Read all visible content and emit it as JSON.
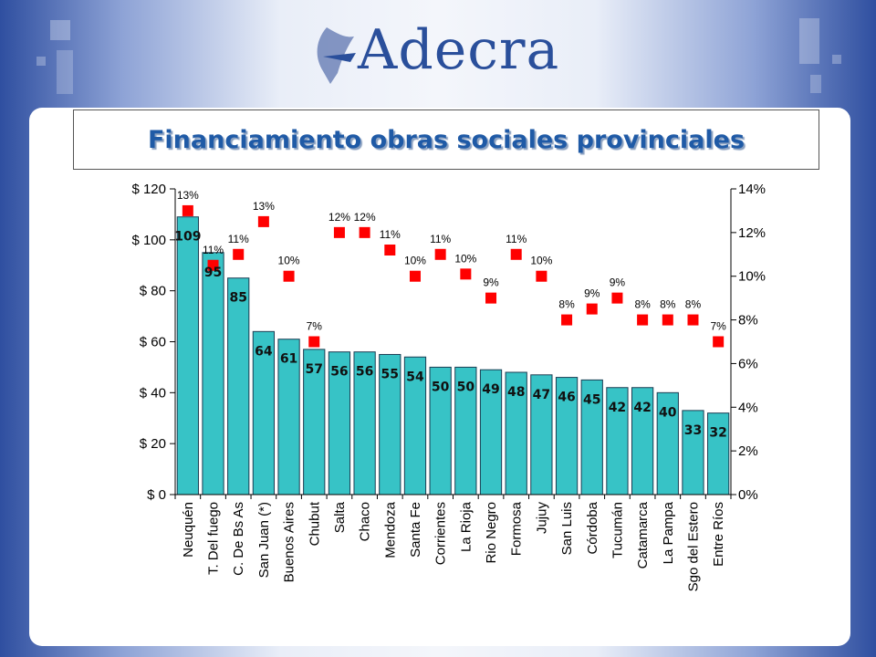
{
  "header": {
    "logo_text": "Adecra",
    "title": "Financiamiento obras sociales provinciales"
  },
  "colors": {
    "bar": "#37c3c6",
    "bar_stroke": "#1b3d52",
    "marker": "#ff0000",
    "title": "#1f5aa6"
  },
  "chart_data": {
    "type": "bar",
    "title": "Financiamiento obras sociales provinciales",
    "categories": [
      "Neuquén",
      "T. Del fuego",
      "C. De Bs As",
      "San Juan (*)",
      "Buenos Aires",
      "Chubut",
      "Salta",
      "Chaco",
      "Mendoza",
      "Santa Fe",
      "Corrientes",
      "La Rioja",
      "Rio Negro",
      "Formosa",
      "Jujuy",
      "San Luis",
      "Córdoba",
      "Tucumán",
      "Catamarca",
      "La Pampa",
      "Sgo del Estero",
      "Entre Ríos"
    ],
    "series": [
      {
        "type": "bar",
        "axis": "left",
        "values": [
          109,
          95,
          85,
          64,
          61,
          57,
          56,
          56,
          55,
          54,
          50,
          50,
          49,
          48,
          47,
          46,
          45,
          42,
          42,
          40,
          33,
          32
        ],
        "labels": [
          "109",
          "95",
          "85",
          "64",
          "61",
          "57",
          "56",
          "56",
          "55",
          "54",
          "50",
          "50",
          "49",
          "48",
          "47",
          "46",
          "45",
          "42",
          "42",
          "40",
          "33",
          "32"
        ]
      },
      {
        "type": "scatter",
        "axis": "right",
        "values": [
          13,
          10.5,
          11,
          12.5,
          10,
          7,
          12,
          12,
          11.2,
          10,
          11,
          10.1,
          9,
          11,
          10,
          8,
          8.5,
          9,
          8,
          8,
          8,
          7
        ],
        "labels": [
          "13%",
          "11%",
          "11%",
          "13%",
          "10%",
          "7%",
          "12%",
          "12%",
          "11%",
          "10%",
          "11%",
          "10%",
          "9%",
          "11%",
          "10%",
          "8%",
          "9%",
          "9%",
          "8%",
          "8%",
          "8%",
          "7%"
        ]
      }
    ],
    "y_left": {
      "min": 0,
      "max": 120,
      "step": 20,
      "tick_labels": [
        "$ 0",
        "$ 20",
        "$ 40",
        "$ 60",
        "$ 80",
        "$ 100",
        "$ 120"
      ]
    },
    "y_right": {
      "min": 0,
      "max": 14,
      "step": 2,
      "tick_labels": [
        "0%",
        "2%",
        "4%",
        "6%",
        "8%",
        "10%",
        "12%",
        "14%"
      ]
    },
    "grid": false,
    "legend": "none"
  }
}
